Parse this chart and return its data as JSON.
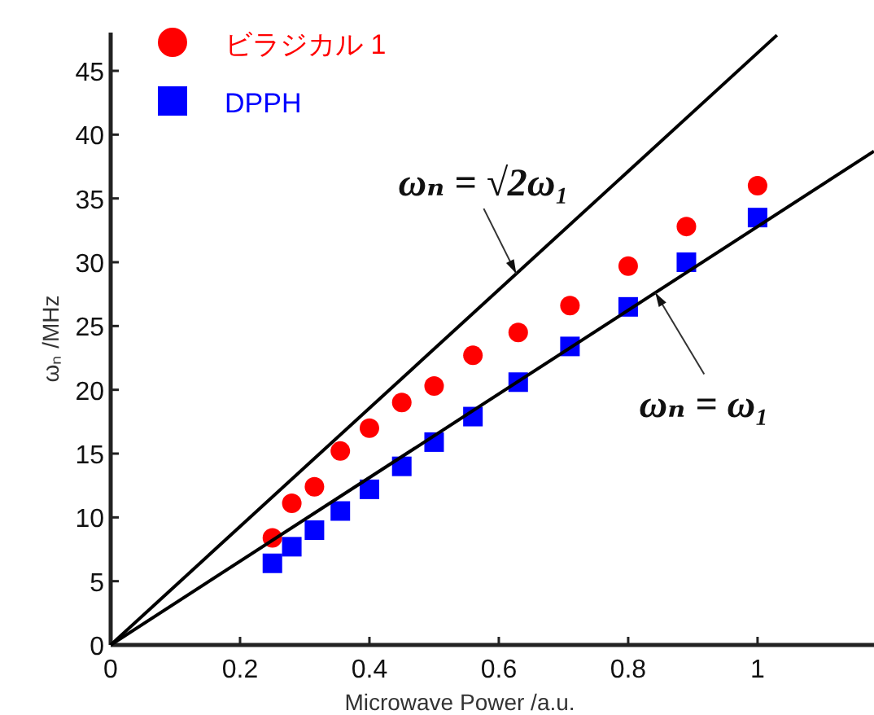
{
  "chart_data": {
    "type": "scatter",
    "xlabel": "Microwave Power /a.u.",
    "ylabel": "ωₙ /MHz",
    "xlim": [
      0,
      1.18
    ],
    "ylim": [
      0,
      48
    ],
    "xticks": [
      0,
      0.2,
      0.4,
      0.6,
      0.8,
      1
    ],
    "yticks": [
      0,
      5,
      10,
      15,
      20,
      25,
      30,
      35,
      40,
      45
    ],
    "legend": "top left",
    "series": [
      {
        "name": "ビラジカル 1",
        "color": "#ff0000",
        "marker": "circle",
        "x": [
          0.25,
          0.28,
          0.315,
          0.355,
          0.4,
          0.45,
          0.5,
          0.56,
          0.63,
          0.71,
          0.8,
          0.89,
          1.0
        ],
        "values": [
          8.4,
          11.1,
          12.4,
          15.2,
          17.0,
          19.0,
          20.3,
          22.7,
          24.5,
          26.6,
          29.7,
          32.8,
          36.0
        ]
      },
      {
        "name": "DPPH",
        "color": "#0000ff",
        "marker": "square",
        "x": [
          0.25,
          0.28,
          0.315,
          0.355,
          0.4,
          0.45,
          0.5,
          0.56,
          0.63,
          0.71,
          0.8,
          0.89,
          1.0
        ],
        "values": [
          6.4,
          7.7,
          9.0,
          10.5,
          12.2,
          14.0,
          15.9,
          17.9,
          20.6,
          23.4,
          26.5,
          30.0,
          33.5
        ]
      },
      {
        "type": "line",
        "color": "#000000",
        "x": [
          0,
          1.03
        ],
        "values": [
          0,
          47.8
        ]
      },
      {
        "type": "line",
        "color": "#000000",
        "x": [
          0,
          1.18
        ],
        "values": [
          0,
          38.7
        ]
      }
    ],
    "annotations": [
      {
        "text": "ωₙ = √2ω₁",
        "x": 0.627,
        "y": 29.1
      },
      {
        "text": "ωₙ = ω₁",
        "x": 0.842,
        "y": 27.6
      }
    ]
  }
}
